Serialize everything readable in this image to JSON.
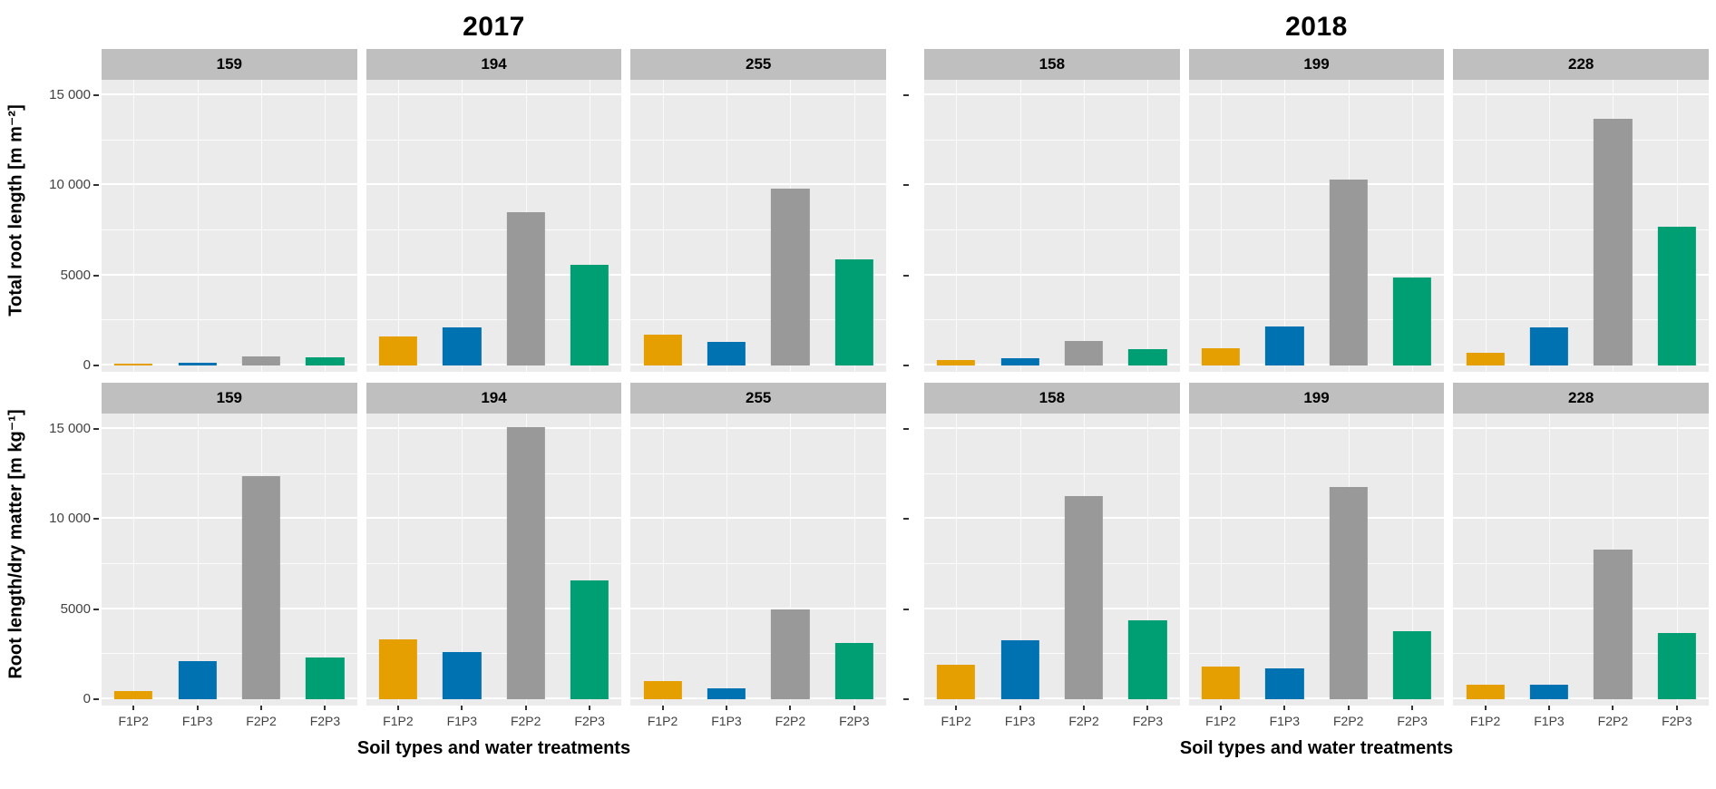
{
  "chart_data": {
    "type": "bar",
    "categories": [
      "F1P2",
      "F1P3",
      "F2P2",
      "F2P3"
    ],
    "palette": {
      "F1P2": "#E69F00",
      "F1P3": "#0072B2",
      "F2P2": "#999999",
      "F2P3": "#009E73"
    },
    "panel_background": "#ebebeb",
    "strip_background": "#bfbfbf",
    "ylim": [
      0,
      15000
    ],
    "yticks": [
      0,
      5000,
      10000,
      15000
    ],
    "ytick_labels": [
      "0",
      "5000",
      "10 000",
      "15 000"
    ],
    "minor_yticks": [
      2500,
      7500,
      12500
    ],
    "xlabel": "Soil types and water treatments",
    "grid": "on",
    "legend": "none",
    "groups": [
      {
        "title": "2017",
        "facets": [
          "159",
          "194",
          "255"
        ]
      },
      {
        "title": "2018",
        "facets": [
          "158",
          "199",
          "228"
        ]
      }
    ],
    "rows": [
      {
        "ylabel": "Total root length [m m⁻²]",
        "panels": [
          {
            "group": "2017",
            "facet": "159",
            "values": [
              120,
              160,
              500,
              450
            ]
          },
          {
            "group": "2017",
            "facet": "194",
            "values": [
              1600,
              2100,
              8500,
              5600
            ]
          },
          {
            "group": "2017",
            "facet": "255",
            "values": [
              1700,
              1300,
              9800,
              5900
            ]
          },
          {
            "group": "2018",
            "facet": "158",
            "values": [
              300,
              400,
              1350,
              900
            ]
          },
          {
            "group": "2018",
            "facet": "199",
            "values": [
              950,
              2150,
              10300,
              4900
            ]
          },
          {
            "group": "2018",
            "facet": "228",
            "values": [
              700,
              2100,
              13700,
              7700
            ]
          }
        ]
      },
      {
        "ylabel": "Root length/dry matter [m kg⁻¹]",
        "panels": [
          {
            "group": "2017",
            "facet": "159",
            "values": [
              450,
              2100,
              12400,
              2300
            ]
          },
          {
            "group": "2017",
            "facet": "194",
            "values": [
              3300,
              2600,
              15100,
              6600
            ]
          },
          {
            "group": "2017",
            "facet": "255",
            "values": [
              1000,
              600,
              5000,
              3100
            ]
          },
          {
            "group": "2018",
            "facet": "158",
            "values": [
              1900,
              3250,
              11300,
              4400
            ]
          },
          {
            "group": "2018",
            "facet": "199",
            "values": [
              1800,
              1700,
              11800,
              3800
            ]
          },
          {
            "group": "2018",
            "facet": "228",
            "values": [
              800,
              800,
              8300,
              3700
            ]
          }
        ]
      }
    ]
  }
}
